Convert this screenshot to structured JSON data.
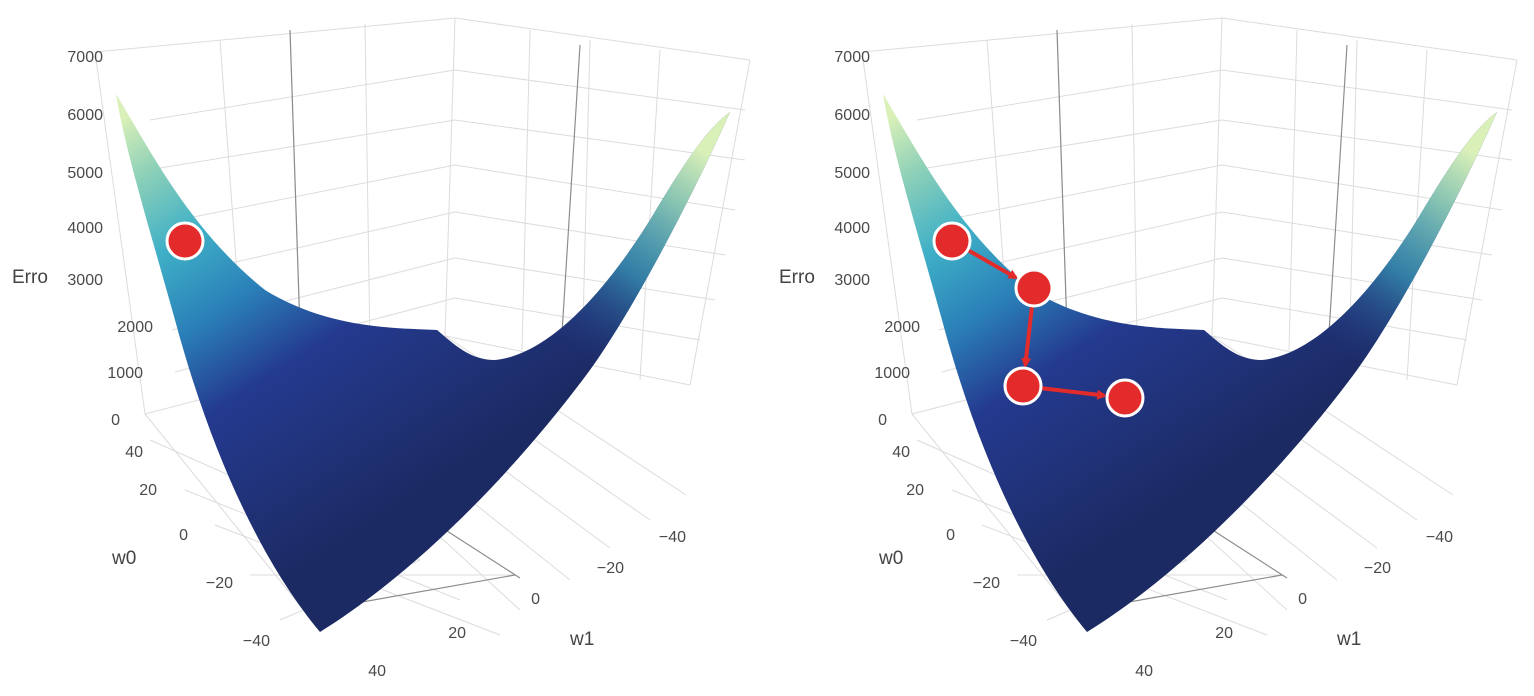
{
  "colors": {
    "marker_fill": "#e32b2b",
    "marker_stroke": "#ffffff",
    "arrow": "#e32b2b",
    "grid": "#dcdcdc",
    "zero_line": "#8c8c8c",
    "colorscale": [
      "#1c2a63",
      "#243a8f",
      "#2a7fb8",
      "#3fb0c7",
      "#8fd1b8",
      "#d9f0b8"
    ]
  },
  "chart_data": [
    {
      "type": "surface3d",
      "z_label": "Erro",
      "x_label": "w0",
      "y_label": "w1",
      "z_ticks": [
        "0",
        "1000",
        "2000",
        "3000",
        "4000",
        "5000",
        "6000",
        "7000"
      ],
      "x_ticks": [
        "40",
        "20",
        "0",
        "−20",
        "−40"
      ],
      "y_ticks": [
        "−40",
        "−20",
        "0",
        "20",
        "40"
      ],
      "zlim": [
        0,
        7000
      ],
      "xlim": [
        -50,
        50
      ],
      "ylim": [
        -50,
        50
      ],
      "colorscale": "YlGnBu",
      "grid": true,
      "path_points": [
        {
          "w0": 38,
          "w1": -32,
          "erro": 3700
        }
      ]
    },
    {
      "type": "surface3d",
      "z_label": "Erro",
      "x_label": "w0",
      "y_label": "w1",
      "z_ticks": [
        "0",
        "1000",
        "2000",
        "3000",
        "4000",
        "5000",
        "6000",
        "7000"
      ],
      "x_ticks": [
        "40",
        "20",
        "0",
        "−20",
        "−40"
      ],
      "y_ticks": [
        "−40",
        "−20",
        "0",
        "20",
        "40"
      ],
      "zlim": [
        0,
        7000
      ],
      "xlim": [
        -50,
        50
      ],
      "ylim": [
        -50,
        50
      ],
      "colorscale": "YlGnBu",
      "grid": true,
      "path_points": [
        {
          "w0": 38,
          "w1": -32,
          "erro": 3700
        },
        {
          "w0": 20,
          "w1": -20,
          "erro": 2700
        },
        {
          "w0": 10,
          "w1": -10,
          "erro": 1200
        },
        {
          "w0": 0,
          "w1": 0,
          "erro": 500
        }
      ]
    }
  ]
}
